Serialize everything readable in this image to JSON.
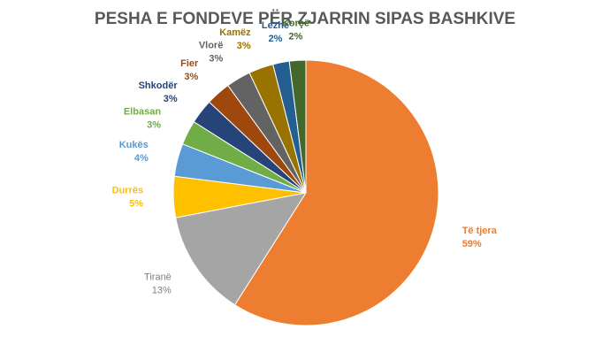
{
  "chart_data": {
    "type": "pie",
    "title": "PESHA E FONDEVE PËR ZJARRIN SIPAS BASHKIVE",
    "categories": [
      "Të tjera",
      "Tiranë",
      "Durrës",
      "Kukës",
      "Elbasan",
      "Shkodër",
      "Fier",
      "Vlorë",
      "Kamëz",
      "Lezhë",
      "Korçë"
    ],
    "values": [
      59,
      13,
      5,
      4,
      3,
      3,
      3,
      3,
      3,
      2,
      2
    ],
    "value_labels": [
      "59%",
      "13%",
      "5%",
      "4%",
      "3%",
      "3%",
      "3%",
      "3%",
      "3%",
      "2%",
      "2%"
    ],
    "colors": [
      "#ED7D31",
      "#A5A5A5",
      "#FFC000",
      "#5B9BD5",
      "#70AD47",
      "#264478",
      "#9E480E",
      "#636363",
      "#997300",
      "#255E91",
      "#43682B"
    ]
  }
}
